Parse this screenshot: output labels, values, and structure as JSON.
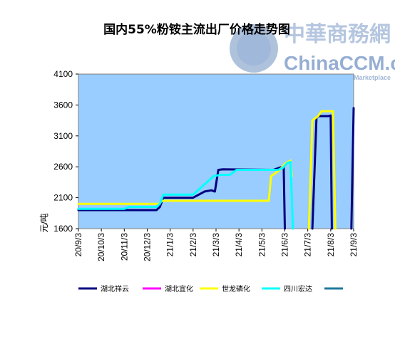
{
  "watermark": {
    "cn": "中華商務網",
    "en": "ChinaCCM.com",
    "sub": "Marketplace",
    "color": "#2f5fa8"
  },
  "chart_data": {
    "type": "line",
    "title": "国内55%粉铵主流出厂价格走势图",
    "ylabel": "元/吨",
    "xlabel": "",
    "ylim": [
      1600,
      4100
    ],
    "yticks": [
      1600,
      2100,
      2600,
      3100,
      3600,
      4100
    ],
    "x_tick_labels": [
      "20/9/3",
      "20/10/3",
      "20/11/3",
      "20/12/3",
      "21/1/3",
      "21/2/3",
      "21/3/3",
      "21/4/3",
      "21/5/3",
      "21/6/3",
      "21/7/3",
      "21/8/3",
      "21/9/3"
    ],
    "xlim": [
      0,
      12
    ],
    "grid": false,
    "plot_background": "#99ccff",
    "legend_position": "bottom",
    "series": [
      {
        "name": "湖北祥云",
        "color": "#000080",
        "points": [
          [
            0,
            1900
          ],
          [
            3.4,
            1900
          ],
          [
            3.55,
            1950
          ],
          [
            3.7,
            2100
          ],
          [
            5.0,
            2100
          ],
          [
            5.5,
            2200
          ],
          [
            5.8,
            2220
          ],
          [
            5.95,
            2200
          ],
          [
            6.1,
            2550
          ],
          [
            6.3,
            2560
          ],
          [
            8.5,
            2550
          ],
          [
            8.8,
            2590
          ],
          [
            8.95,
            2600
          ],
          [
            9.0,
            1600
          ]
        ],
        "segments_extra": [
          [
            [
              10.2,
              1600
            ],
            [
              10.38,
              3400
            ],
            [
              10.5,
              3420
            ],
            [
              10.9,
              3420
            ],
            [
              11.0,
              3430
            ],
            [
              11.05,
              1600
            ]
          ],
          [
            [
              11.9,
              1600
            ],
            [
              12.0,
              3550
            ]
          ]
        ]
      },
      {
        "name": "湖北宜化",
        "color": "#ff00ff",
        "points": []
      },
      {
        "name": "世龙磷化",
        "color": "#ffff00",
        "points": [
          [
            0,
            2000
          ],
          [
            3.5,
            2000
          ],
          [
            3.65,
            2050
          ],
          [
            8.3,
            2050
          ],
          [
            8.4,
            2450
          ],
          [
            8.6,
            2500
          ],
          [
            8.8,
            2560
          ],
          [
            9.0,
            2650
          ],
          [
            9.25,
            2700
          ],
          [
            9.3,
            2450
          ]
        ],
        "segments_extra": [
          [
            [
              10.05,
              1600
            ],
            [
              10.2,
              3350
            ],
            [
              10.45,
              3420
            ],
            [
              10.6,
              3500
            ],
            [
              11.1,
              3500
            ],
            [
              11.2,
              1600
            ]
          ]
        ]
      },
      {
        "name": "四川宏达",
        "color": "#00ffff",
        "points": [
          [
            0,
            1920
          ],
          [
            2.0,
            1920
          ],
          [
            2.2,
            1950
          ],
          [
            3.4,
            1950
          ],
          [
            3.55,
            2000
          ],
          [
            3.7,
            2150
          ],
          [
            5.0,
            2150
          ],
          [
            5.3,
            2250
          ],
          [
            5.6,
            2350
          ],
          [
            5.9,
            2450
          ],
          [
            6.2,
            2470
          ],
          [
            6.6,
            2470
          ],
          [
            6.9,
            2550
          ],
          [
            8.4,
            2550
          ],
          [
            8.7,
            2550
          ],
          [
            8.9,
            2580
          ],
          [
            9.1,
            2660
          ],
          [
            9.25,
            2680
          ],
          [
            9.35,
            1600
          ]
        ]
      },
      {
        "name": "",
        "color": "#1f7a9e",
        "points": []
      }
    ]
  }
}
